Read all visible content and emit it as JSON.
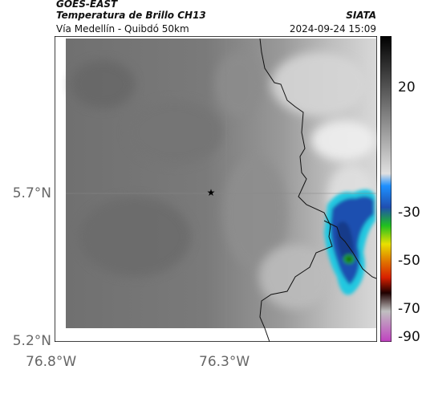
{
  "header": {
    "satellite": "GOES-EAST",
    "product": "Temperatura de Brillo CH13",
    "route": "Vía Medellín - Quibdó 50km",
    "org": "SIATA",
    "timestamp": "2024-09-24 15:09"
  },
  "map": {
    "y_ticks": [
      "5.7°N",
      "5.2°N"
    ],
    "x_ticks": [
      "76.8°W",
      "76.3°W"
    ],
    "marker": "star",
    "gridlines": true
  },
  "colorbar": {
    "ticks": [
      "20",
      "-30",
      "-50",
      "-70",
      "-90"
    ],
    "colors": {
      "warm": "#2b2b2b",
      "cold_blue": "#1f4fb0",
      "cyan": "#20c8e0",
      "green": "#20c020",
      "yellow": "#e8e000",
      "red": "#d82000",
      "magenta": "#c040c0"
    }
  }
}
